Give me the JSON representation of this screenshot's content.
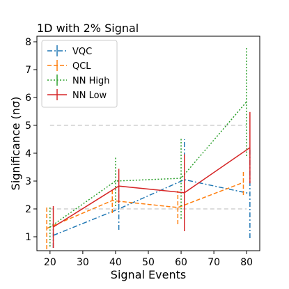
{
  "chart_data": {
    "type": "line",
    "title": "1D with 2% Signal",
    "xlabel": "Signal Events",
    "ylabel": "Significance (nσ)",
    "xlim": [
      16,
      84
    ],
    "ylim": [
      0.5,
      8.2
    ],
    "xticks": [
      20,
      30,
      40,
      50,
      60,
      70,
      80
    ],
    "yticks": [
      1,
      2,
      3,
      4,
      5,
      6,
      7,
      8
    ],
    "reference_lines": [
      2,
      5
    ],
    "grid": false,
    "legend": "top-left",
    "series": [
      {
        "name": "VQC",
        "color": "#1f77b4",
        "linestyle": "dashdot",
        "x": [
          21,
          41,
          61,
          81
        ],
        "y": [
          1.05,
          2.0,
          3.05,
          2.55
        ],
        "yerr": [
          0.45,
          0.75,
          1.45,
          1.6
        ]
      },
      {
        "name": "QCL",
        "color": "#ff7f0e",
        "linestyle": "dashed",
        "x": [
          19,
          39,
          59,
          79
        ],
        "y": [
          1.3,
          2.3,
          2.05,
          2.95
        ],
        "yerr": [
          0.75,
          0.45,
          0.6,
          0.45
        ]
      },
      {
        "name": "NN High",
        "color": "#2ca02c",
        "linestyle": "dotted",
        "x": [
          20,
          40,
          60,
          80
        ],
        "y": [
          1.35,
          3.0,
          3.1,
          5.85
        ],
        "yerr": [
          0.7,
          0.9,
          1.45,
          1.95
        ]
      },
      {
        "name": "NN Low",
        "color": "#d62728",
        "linestyle": "solid",
        "x": [
          21,
          41,
          61,
          81
        ],
        "y": [
          1.35,
          2.82,
          2.58,
          4.2
        ],
        "yerr": [
          0.75,
          0.62,
          1.38,
          1.28
        ]
      }
    ]
  }
}
